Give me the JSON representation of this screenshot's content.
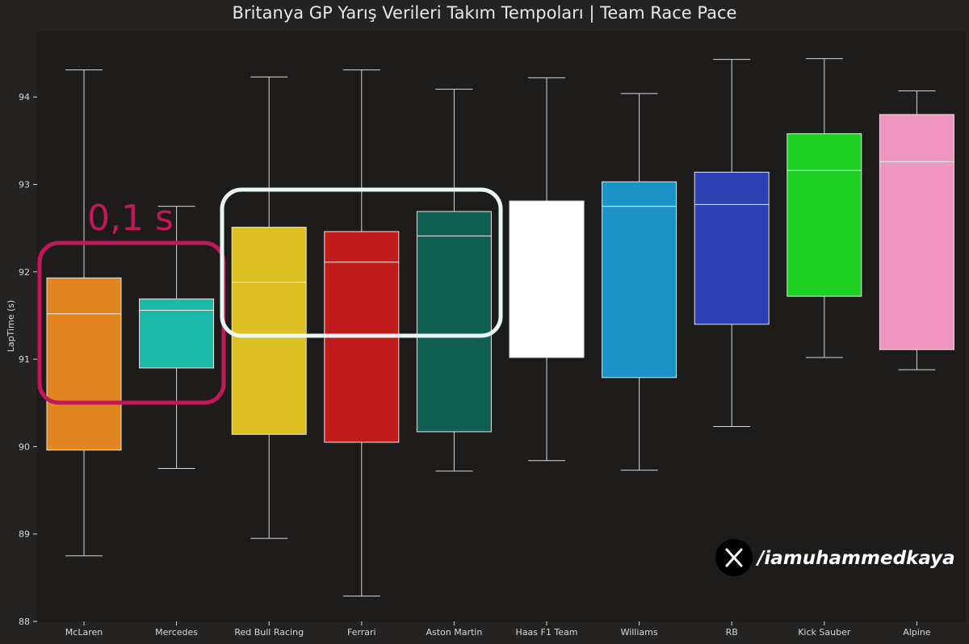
{
  "chart_data": {
    "type": "box",
    "title": "Britanya GP Yarış Verileri Takım Tempoları | Team Race Pace",
    "ylabel": "LapTime (s)",
    "xlabel": "",
    "ylim": [
      88,
      94.75
    ],
    "yticks": [
      "88",
      "89",
      "90",
      "91",
      "92",
      "93",
      "94"
    ],
    "grid": false,
    "teams": [
      {
        "name": "McLaren",
        "color": "#e0851f",
        "whisker_low": 88.75,
        "q1": 89.96,
        "median": 91.52,
        "q3": 91.93,
        "whisker_high": 94.31
      },
      {
        "name": "Mercedes",
        "color": "#1bbaa8",
        "whisker_low": 89.75,
        "q1": 90.9,
        "median": 91.56,
        "q3": 91.69,
        "whisker_high": 92.75
      },
      {
        "name": "Red Bull Racing",
        "color": "#dcbf23",
        "whisker_low": 88.95,
        "q1": 90.14,
        "median": 91.88,
        "q3": 92.51,
        "whisker_high": 94.23
      },
      {
        "name": "Ferrari",
        "color": "#c21b1b",
        "whisker_low": 88.29,
        "q1": 90.05,
        "median": 92.11,
        "q3": 92.46,
        "whisker_high": 94.31
      },
      {
        "name": "Aston Martin",
        "color": "#0f5f52",
        "whisker_low": 89.72,
        "q1": 90.17,
        "median": 92.41,
        "q3": 92.69,
        "whisker_high": 94.09
      },
      {
        "name": "Haas F1 Team",
        "color": "#ffffff",
        "whisker_low": 89.84,
        "q1": 91.02,
        "median": null,
        "q3": 92.81,
        "whisker_high": 94.22
      },
      {
        "name": "Williams",
        "color": "#1c93c4",
        "whisker_low": 89.73,
        "q1": 90.79,
        "median": 92.75,
        "q3": 93.03,
        "whisker_high": 94.04
      },
      {
        "name": "RB",
        "color": "#2c41b4",
        "whisker_low": 90.23,
        "q1": 91.4,
        "median": 92.77,
        "q3": 93.14,
        "whisker_high": 94.43
      },
      {
        "name": "Kick Sauber",
        "color": "#1ccf23",
        "whisker_low": 91.02,
        "q1": 91.72,
        "median": 93.16,
        "q3": 93.58,
        "whisker_high": 94.44
      },
      {
        "name": "Alpine",
        "color": "#ee96c0",
        "whisker_low": 90.88,
        "q1": 91.11,
        "median": 93.26,
        "q3": 93.8,
        "whisker_high": 94.07
      }
    ],
    "annotations": {
      "gap_label": "0,1 s",
      "pink_box_color": "#c2185b",
      "white_box_color": "#eaf6f6"
    }
  },
  "watermark": {
    "icon": "x-logo-icon",
    "handle": "/iamuhammedkaya"
  },
  "colors": {
    "background": "#252322",
    "plot_background": "#1e1c1b",
    "line": "#d8d8d8"
  }
}
